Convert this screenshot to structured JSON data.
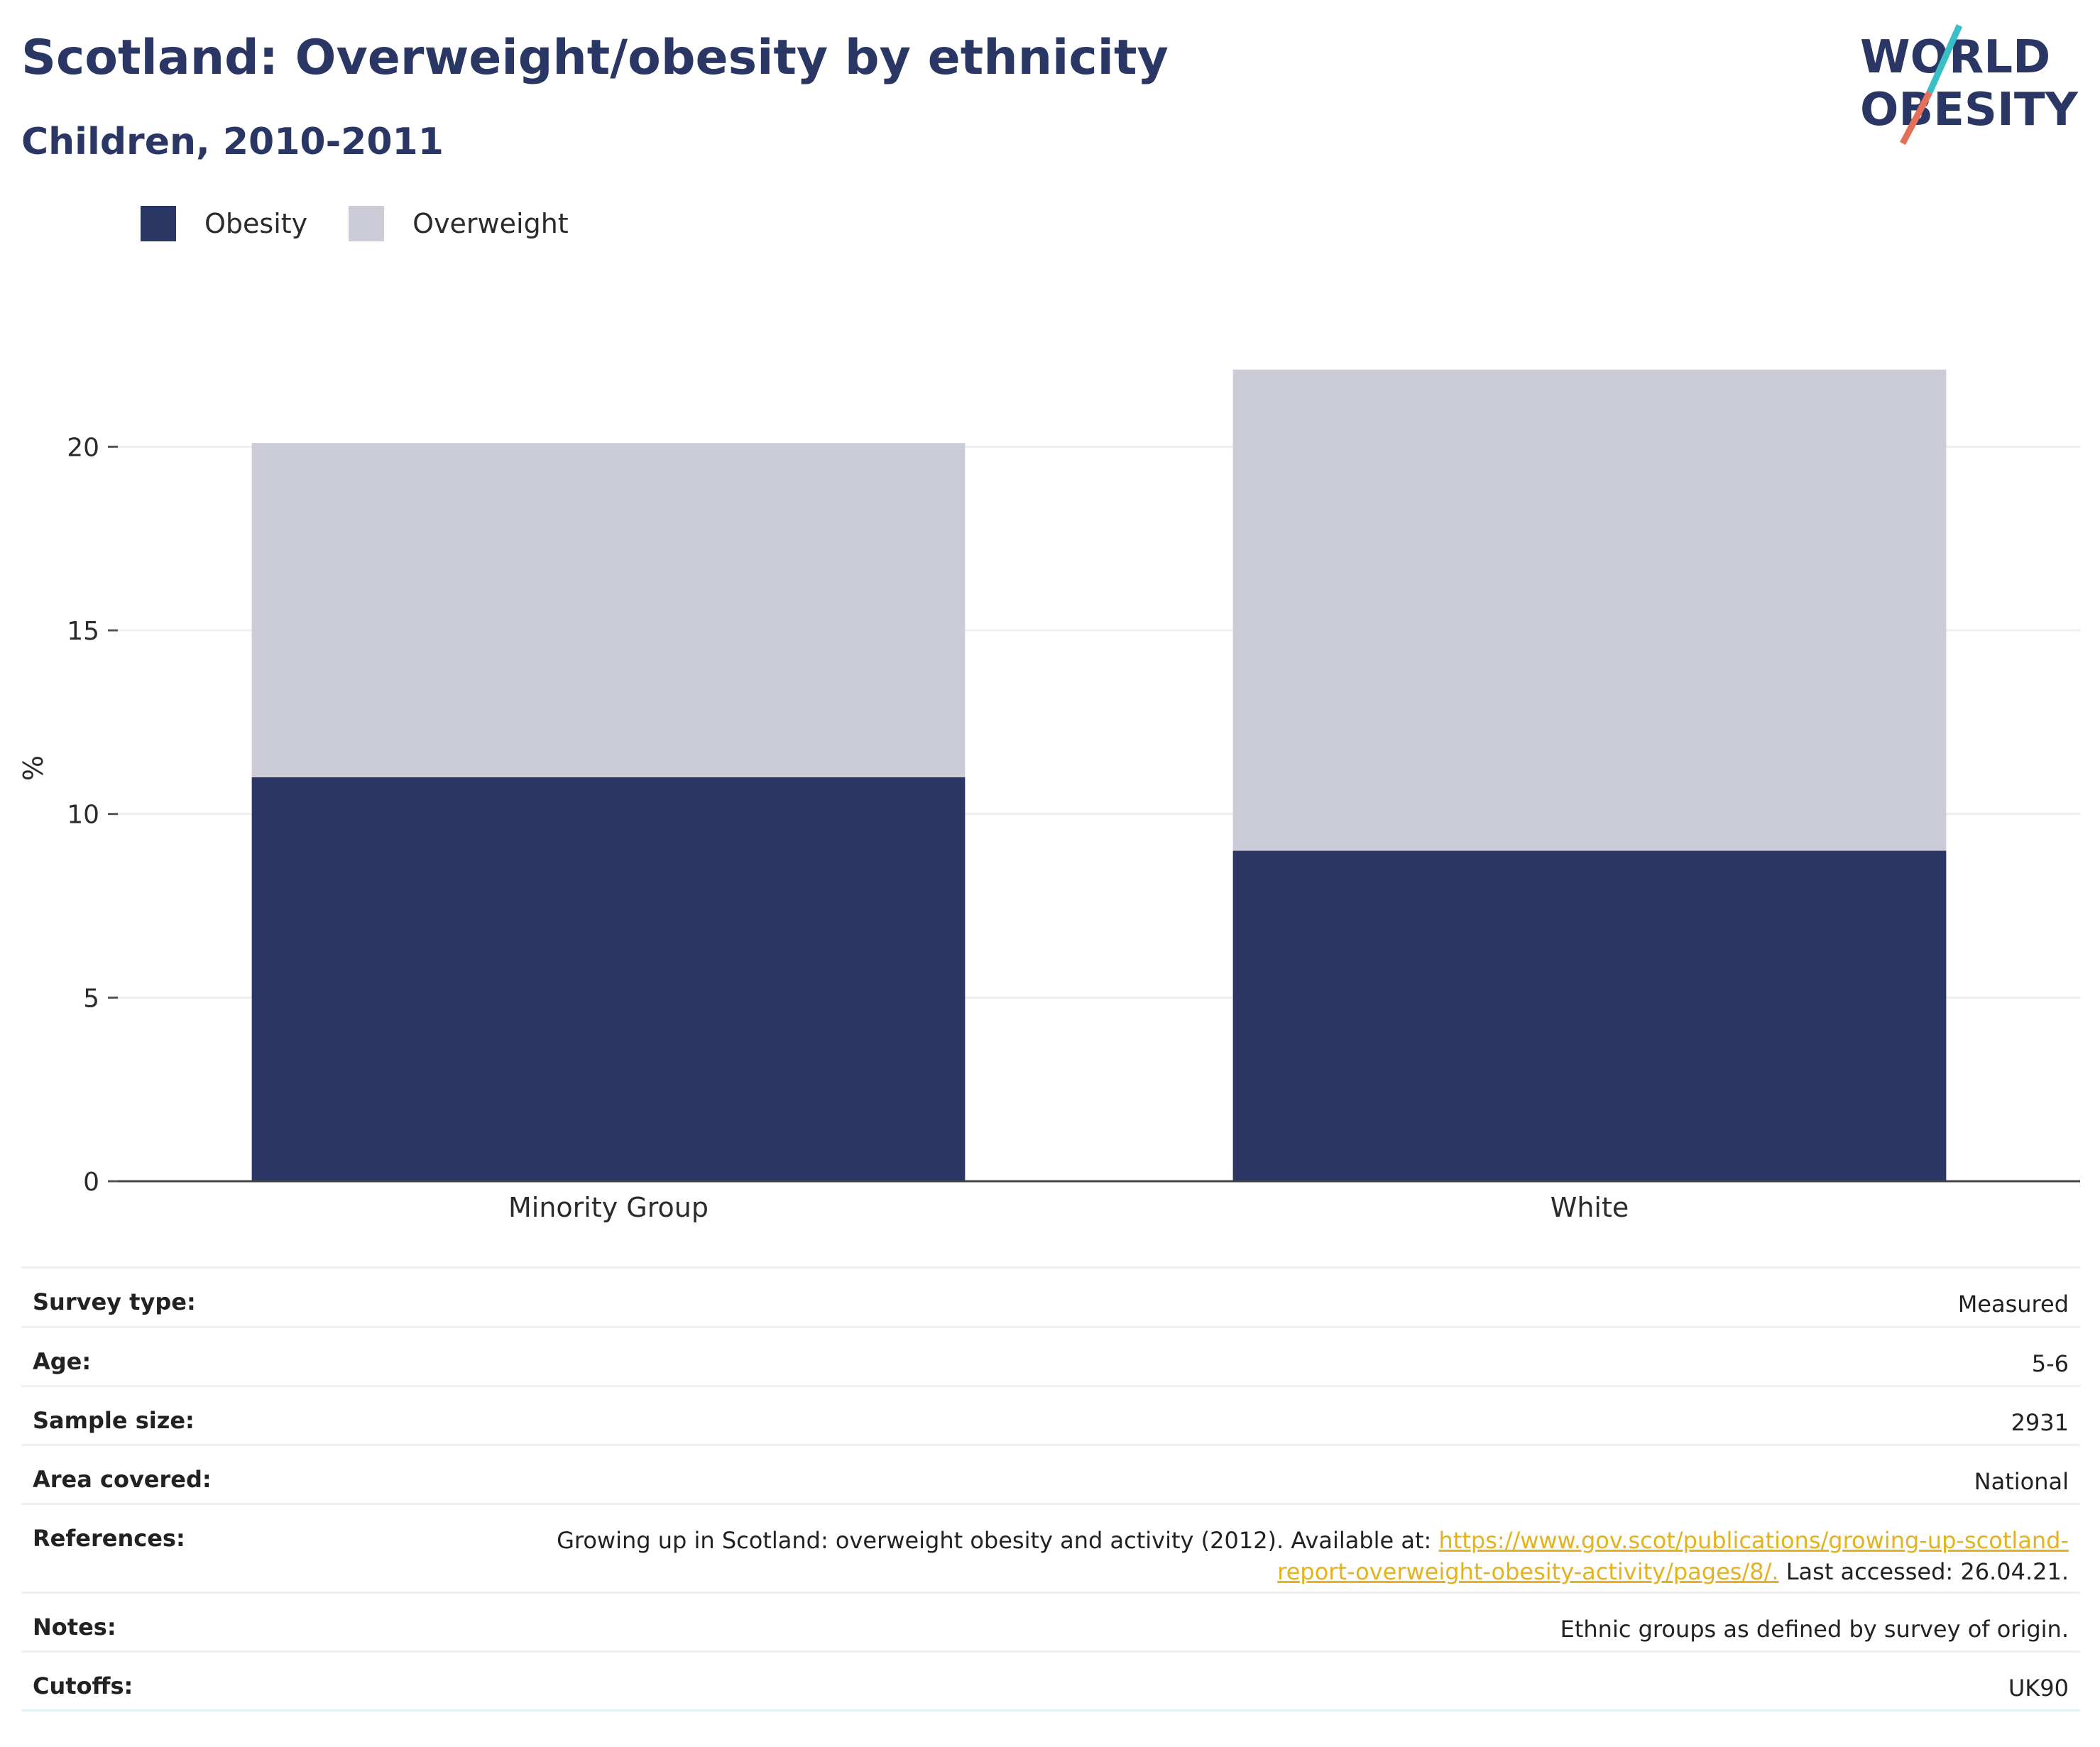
{
  "header": {
    "title": "Scotland: Overweight/obesity by ethnicity",
    "subtitle": "Children, 2010-2011"
  },
  "logo": {
    "line1": "WORLD",
    "line2": "OBESITY"
  },
  "colors": {
    "obesity": "#2a3663",
    "overweight": "#cbccd8",
    "title": "#2a3663",
    "link": "#e3b21e",
    "logo_teal": "#3bbfc6",
    "logo_coral": "#e4705a"
  },
  "chart_data": {
    "type": "bar",
    "stacked": true,
    "categories": [
      "Minority Group",
      "White"
    ],
    "series": [
      {
        "name": "Obesity",
        "values": [
          11,
          9
        ]
      },
      {
        "name": "Overweight",
        "values": [
          9.1,
          13.1
        ]
      }
    ],
    "ylabel": "%",
    "xlabel": "",
    "ylim": [
      0,
      22.5
    ],
    "yticks": [
      0,
      5,
      10,
      15,
      20
    ],
    "grid": true,
    "legend": "top-left"
  },
  "info": {
    "survey_type": {
      "label": "Survey type:",
      "value": "Measured"
    },
    "age": {
      "label": "Age:",
      "value": "5-6"
    },
    "sample_size": {
      "label": "Sample size:",
      "value": "2931"
    },
    "area_covered": {
      "label": "Area covered:",
      "value": "National"
    },
    "references": {
      "label": "References:",
      "text_before": "Growing up in Scotland: overweight obesity and activity (2012). Available at: ",
      "link_line1": "https://www.gov.scot/publications/growing-up-scotland-",
      "link_line2": "report-overweight-obesity-activity/pages/8/.",
      "text_after": " Last accessed: 26.04.21."
    },
    "notes": {
      "label": "Notes:",
      "value": "Ethnic groups as defined by survey of origin."
    },
    "cutoffs": {
      "label": "Cutoffs:",
      "value": "UK90"
    }
  }
}
